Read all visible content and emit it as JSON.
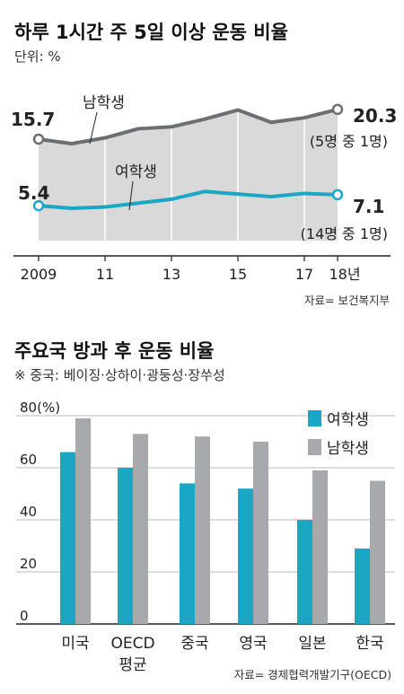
{
  "chart1": {
    "title": "하루 1시간 주 5일 이상 운동 비율",
    "unit": "단위: %",
    "source": "자료= 보건복지부",
    "x_labels": [
      "2009",
      "11",
      "13",
      "15",
      "17",
      "18년"
    ],
    "boy_label": "남학생",
    "girl_label": "여학생",
    "boy_start": "15.7",
    "boy_end": "20.3",
    "boy_note": "(5명 중 1명)",
    "girl_start": "5.4",
    "girl_end": "7.1",
    "girl_note": "(14명 중 1명)",
    "colors": {
      "boy": "#6d6e71",
      "girl": "#1aa6c4",
      "fill": "#cccccc"
    }
  },
  "chart2": {
    "title": "주요국 방과 후 운동 비율",
    "note": "※ 중국: 베이징·상하이·광둥성·장쑤성",
    "source": "자료= 경제협력개발기구(OECD)",
    "y_ticks": [
      "80(%)",
      "60",
      "40",
      "20",
      "0"
    ],
    "legend": {
      "girl": "여학생",
      "boy": "남학생"
    },
    "categories": [
      {
        "label": "미국",
        "label2": ""
      },
      {
        "label": "OECD",
        "label2": "평균"
      },
      {
        "label": "중국",
        "label2": ""
      },
      {
        "label": "영국",
        "label2": ""
      },
      {
        "label": "일본",
        "label2": ""
      },
      {
        "label": "한국",
        "label2": ""
      }
    ],
    "colors": {
      "girl": "#1aa6c4",
      "boy": "#a8a9ad"
    }
  },
  "chart_data": [
    {
      "type": "line",
      "title": "하루 1시간 주 5일 이상 운동 비율",
      "ylabel": "단위: %",
      "x": [
        2009,
        2010,
        2011,
        2012,
        2013,
        2014,
        2015,
        2016,
        2017,
        2018
      ],
      "series": [
        {
          "name": "남학생",
          "values": [
            15.7,
            15.0,
            15.9,
            17.3,
            17.6,
            18.8,
            20.2,
            18.3,
            19.0,
            20.3
          ]
        },
        {
          "name": "여학생",
          "values": [
            5.4,
            5.0,
            5.2,
            5.8,
            6.4,
            7.6,
            7.2,
            6.8,
            7.3,
            7.1
          ]
        }
      ],
      "ylim": [
        0,
        24
      ]
    },
    {
      "type": "bar",
      "title": "주요국 방과 후 운동 비율",
      "categories": [
        "미국",
        "OECD 평균",
        "중국",
        "영국",
        "일본",
        "한국"
      ],
      "series": [
        {
          "name": "여학생",
          "values": [
            66,
            60,
            54,
            52,
            40,
            29
          ]
        },
        {
          "name": "남학생",
          "values": [
            79,
            73,
            72,
            70,
            59,
            55
          ]
        }
      ],
      "ylim": [
        0,
        80
      ],
      "legend": "top-right"
    }
  ]
}
